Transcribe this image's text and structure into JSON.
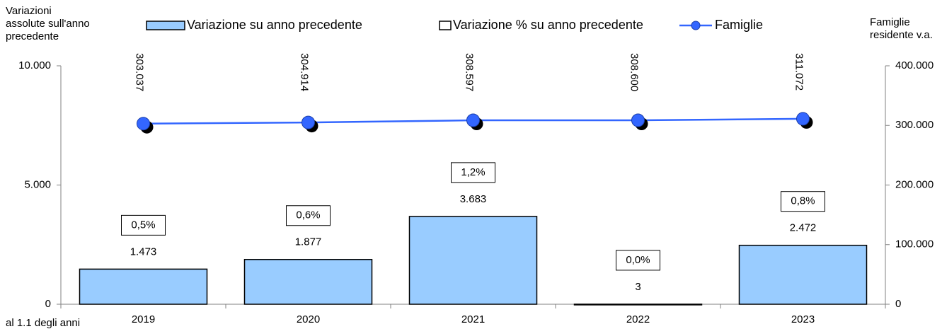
{
  "chart_data": {
    "type": "bar-line",
    "ylabel": [
      "Variazioni",
      "assolute sull'anno",
      "precedente"
    ],
    "y2label": [
      "Famiglie",
      "residente v.a."
    ],
    "xlabel": "al 1.1 degli anni",
    "categories": [
      "2019",
      "2020",
      "2021",
      "2022",
      "2023"
    ],
    "series": [
      {
        "name": "Variazione su anno precedente",
        "type": "bar",
        "color": "#99ccff",
        "values": [
          1473,
          1877,
          3683,
          3,
          2472
        ],
        "value_labels": [
          "1.473",
          "1.877",
          "3.683",
          "3",
          "2.472"
        ]
      },
      {
        "name": "Variazione % su anno precedente",
        "type": "label",
        "color": "#ffffff",
        "values": [
          0.5,
          0.6,
          1.2,
          0.0,
          0.8
        ],
        "value_labels": [
          "0,5%",
          "0,6%",
          "1,2%",
          "0,0%",
          "0,8%"
        ]
      },
      {
        "name": "Famiglie",
        "type": "line",
        "axis": "y2",
        "color": "#3366ff",
        "values": [
          303037,
          304914,
          308597,
          308600,
          311072
        ],
        "value_labels": [
          "303.037",
          "304.914",
          "308.597",
          "308.600",
          "311.072"
        ]
      }
    ],
    "ylim": [
      0,
      10000
    ],
    "yticks": [
      0,
      {
        "value": 5000,
        "label": "5.000"
      },
      {
        "value": 10000,
        "label": "10.000"
      }
    ],
    "y2lim": [
      0,
      400000
    ],
    "y2ticks": [
      0,
      {
        "value": 100000,
        "label": "100.000"
      },
      {
        "value": 200000,
        "label": "200.000"
      },
      {
        "value": 300000,
        "label": "300.000"
      },
      {
        "value": 400000,
        "label": "400.000"
      }
    ],
    "legend": "top"
  }
}
